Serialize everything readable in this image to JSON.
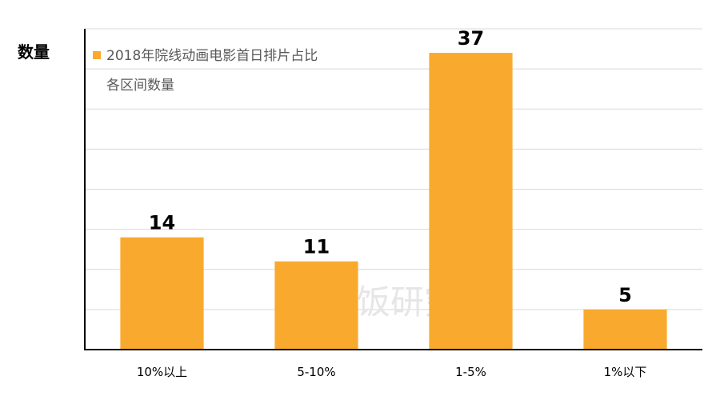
{
  "chart_data": {
    "type": "bar",
    "ylabel": "数量",
    "categories": [
      "10%以上",
      "5-10%",
      "1-5%",
      "1%以下"
    ],
    "series": [
      {
        "name": "2018年院线动画电影首日排片占比各区间数量",
        "values": [
          14,
          11,
          37,
          5
        ]
      }
    ],
    "legend_lines": [
      "2018年院线动画电影首日排片占比",
      "各区间数量"
    ],
    "ylim": [
      0,
      40
    ],
    "grid": true,
    "legend_position": "top-left",
    "watermark": "有饭研究",
    "colors": {
      "bar": "#F9AA2E",
      "grid": "#D9D9D9",
      "axis": "#000000"
    }
  }
}
